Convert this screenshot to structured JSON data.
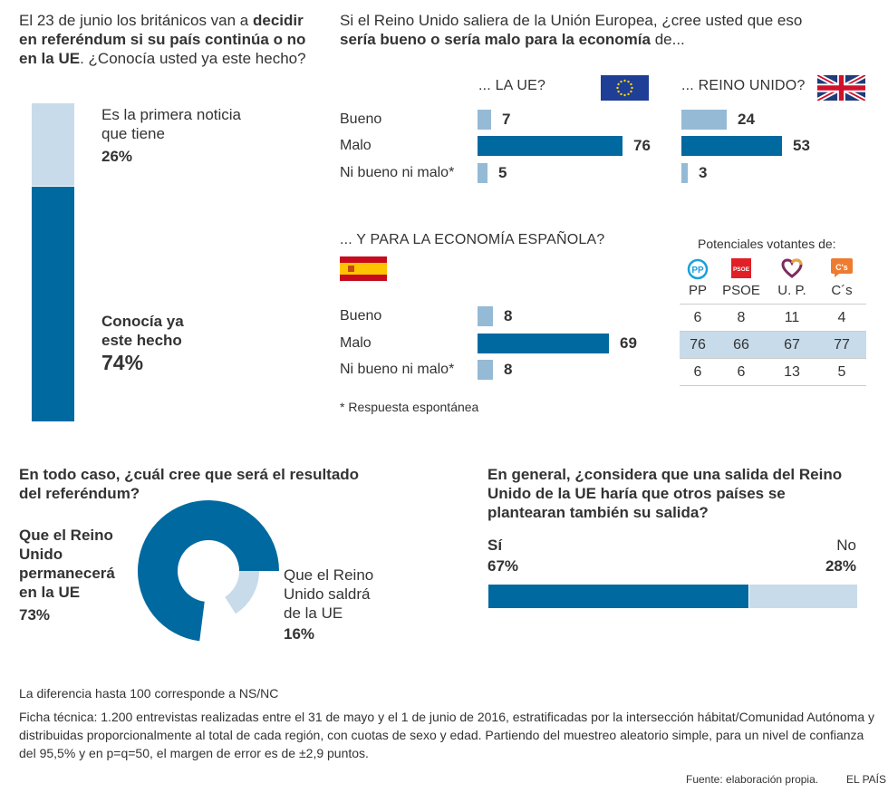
{
  "awareness": {
    "intro_plain1": "El 23 de junio los británicos van a",
    "intro_bold": "decidir en referéndum si su país continúa o no en la UE",
    "intro_plain2": ". ¿Conocía usted ya este hecho?",
    "first_news_label": "Es la primera noticia que tiene",
    "first_news_pct": "26%",
    "knew_label": "Conocía ya este hecho",
    "knew_pct": "74%"
  },
  "economy": {
    "question_plain": "Si el Reino Unido saliera de la Unión Europea, ¿cree usted que eso",
    "question_bold": "sería bueno o sería malo para la economía",
    "question_tail": " de...",
    "ue_header": "... LA UE?",
    "uk_header": "... REINO UNIDO?",
    "es_header": "... Y PARA LA ECONOMÍA ESPAÑOLA?",
    "footnote": "* Respuesta espontánea",
    "flags": {
      "eu": "eu-flag-icon",
      "uk": "uk-flag-icon",
      "es": "spain-flag-icon"
    }
  },
  "parties": {
    "title": "Potenciales votantes de:",
    "columns": [
      {
        "name": "PP",
        "icon": "pp-logo-icon",
        "color": "#1ba0dc"
      },
      {
        "name": "PSOE",
        "icon": "psoe-logo-icon",
        "color": "#e01f27"
      },
      {
        "name": "U. P.",
        "icon": "podemos-heart-icon",
        "color": "#6b2a5f"
      },
      {
        "name": "C´s",
        "icon": "ciudadanos-logo-icon",
        "color": "#ed7c31"
      }
    ],
    "rows": [
      [
        "6",
        "8",
        "11",
        "4"
      ],
      [
        "76",
        "66",
        "67",
        "77"
      ],
      [
        "6",
        "6",
        "13",
        "5"
      ]
    ]
  },
  "outcome": {
    "question": "En todo caso, ¿cuál cree que será el resultado del referéndum?",
    "remain_label": "Que el Reino Unido permanecerá en la UE",
    "remain_pct": "73%",
    "leave_label": "Que el Reino Unido saldrá de la UE",
    "leave_pct": "16%"
  },
  "contagion": {
    "question": "En general, ¿considera que una salida del Reino Unido de la UE haría que otros países se plantearan también su salida?",
    "yes_label": "Sí",
    "yes_pct": "67%",
    "no_label": "No",
    "no_pct": "28%"
  },
  "footer": {
    "note": "La diferencia hasta 100 corresponde a NS/NC",
    "technical": "Ficha técnica: 1.200 entrevistas realizadas entre el 31 de mayo y el 1 de junio de 2016, estratificadas por la intersección hábitat/Comunidad Autónoma y distribuidas proporcionalmente al total de cada región, con cuotas de sexo y edad. Partiendo del muestreo aleatorio simple, para un nivel de confianza del 95,5% y en p=q=50, el margen de error es de ±2,9 puntos.",
    "source": "Fuente: elaboración propia.",
    "brand": "EL PAÍS"
  },
  "colors": {
    "dark": "#0069a0",
    "light": "#c8dbea",
    "mid": "#95bad5",
    "text": "#333333"
  },
  "chart_data": [
    {
      "type": "bar",
      "title": "¿Conocía usted ya este hecho?",
      "orientation": "stacked-vertical",
      "categories": [
        "Es la primera noticia que tiene",
        "Conocía ya este hecho"
      ],
      "values": [
        26,
        74
      ],
      "unit": "%"
    },
    {
      "type": "bar",
      "title": "Economía de la UE",
      "orientation": "horizontal",
      "categories": [
        "Bueno",
        "Malo",
        "Ni bueno ni malo*"
      ],
      "values": [
        7,
        76,
        5
      ]
    },
    {
      "type": "bar",
      "title": "Economía del Reino Unido",
      "orientation": "horizontal",
      "categories": [
        "Bueno",
        "Malo",
        "Ni bueno ni malo*"
      ],
      "values": [
        24,
        53,
        3
      ]
    },
    {
      "type": "bar",
      "title": "Economía española",
      "orientation": "horizontal",
      "categories": [
        "Bueno",
        "Malo",
        "Ni bueno ni malo*"
      ],
      "values": [
        8,
        69,
        8
      ]
    },
    {
      "type": "table",
      "title": "Potenciales votantes de:",
      "columns": [
        "PP",
        "PSOE",
        "U. P.",
        "C´s"
      ],
      "row_categories": [
        "Bueno",
        "Malo",
        "Ni bueno ni malo*"
      ],
      "rows": [
        [
          6,
          8,
          11,
          4
        ],
        [
          76,
          66,
          67,
          77
        ],
        [
          6,
          6,
          13,
          5
        ]
      ]
    },
    {
      "type": "pie",
      "title": "¿Cuál cree que será el resultado del referéndum?",
      "categories": [
        "Que el Reino Unido permanecerá en la UE",
        "Que el Reino Unido saldrá de la UE"
      ],
      "values": [
        73,
        16
      ],
      "unit": "%"
    },
    {
      "type": "bar",
      "title": "¿Otros países se plantearían también su salida?",
      "orientation": "stacked-horizontal",
      "categories": [
        "Sí",
        "No"
      ],
      "values": [
        67,
        28
      ],
      "unit": "%"
    }
  ]
}
